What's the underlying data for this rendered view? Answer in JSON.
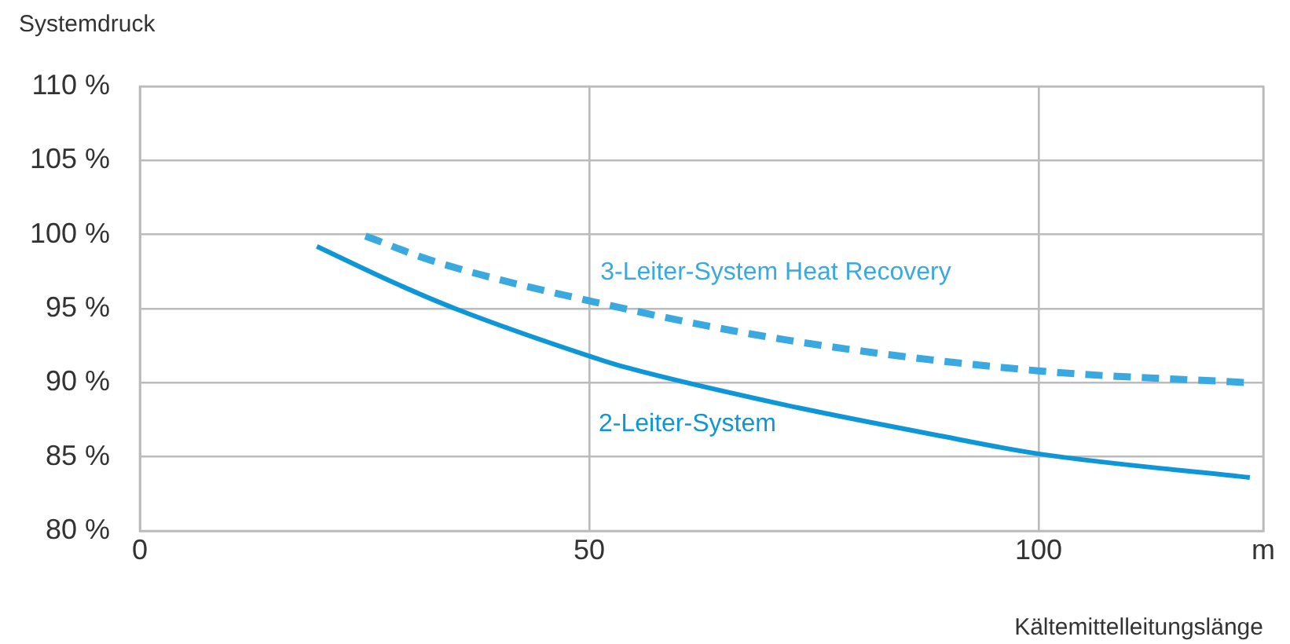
{
  "chart_data": {
    "type": "line",
    "ylabel": "Systemdruck",
    "xlabel": "Kältemittelleitungslänge",
    "xlim": [
      0,
      125
    ],
    "xticks": [
      0,
      50,
      100,
      {
        "value": 125,
        "label": "m"
      }
    ],
    "ylim": [
      80,
      110
    ],
    "yticks": [
      {
        "value": 80,
        "label": "80 %"
      },
      {
        "value": 85,
        "label": "85 %"
      },
      {
        "value": 90,
        "label": "90 %"
      },
      {
        "value": 95,
        "label": "95 %"
      },
      {
        "value": 100,
        "label": "100 %"
      },
      {
        "value": 105,
        "label": "105 %"
      },
      {
        "value": 110,
        "label": "110 %"
      }
    ],
    "grid": true,
    "legend": false,
    "marker": "none",
    "series": [
      {
        "name": "3-Leiter-System Heat Recovery",
        "color": "#3aa9e0",
        "line_style": "dashed",
        "x": [
          25.1,
          32.7,
          50.2,
          71.8,
          100,
          123.5
        ],
        "values": [
          99.9,
          98.2,
          95.5,
          92.9,
          90.8,
          90.0
        ]
      },
      {
        "name": "2-Leiter-System",
        "color": "#0f96d6",
        "line_style": "solid",
        "x": [
          19.7,
          28.1,
          35.1,
          50,
          54.3,
          71.8,
          89.2,
          100,
          123.5
        ],
        "values": [
          99.2,
          96.8,
          95.0,
          91.8,
          91.0,
          88.5,
          86.4,
          85.2,
          83.6
        ]
      }
    ]
  }
}
